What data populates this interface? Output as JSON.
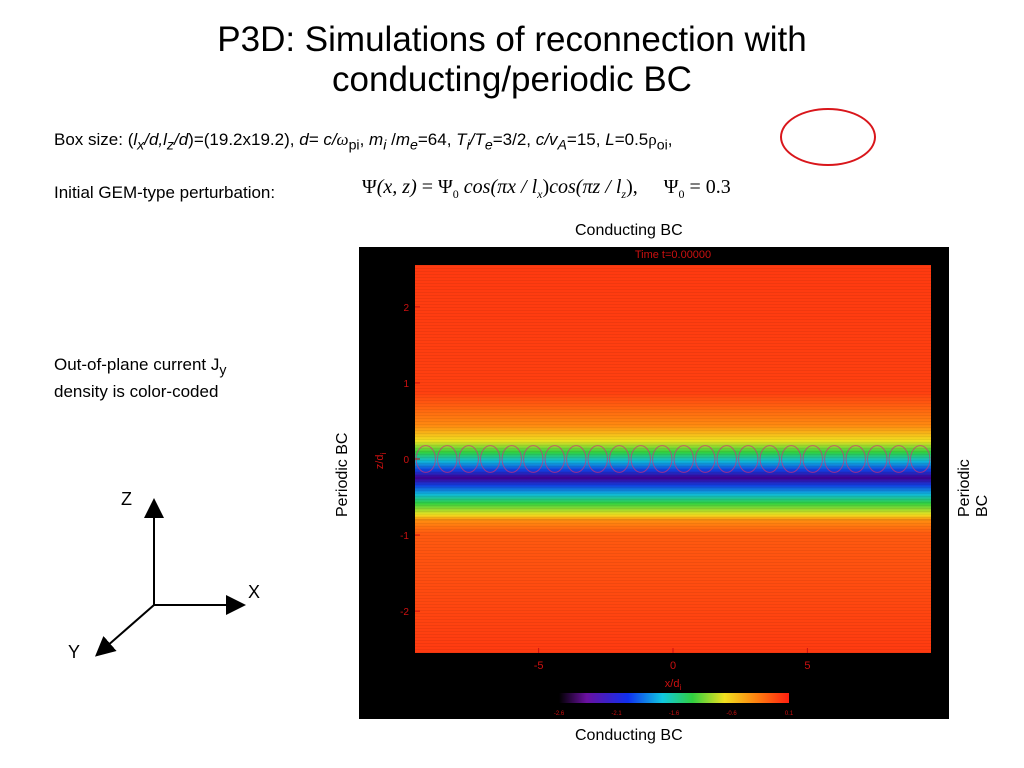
{
  "slide": {
    "title_line1": "P3D: Simulations of reconnection with",
    "title_line2": "conducting/periodic BC",
    "box_size": {
      "prefix": "Box size: (",
      "lx": "l",
      "lx_sub": "x",
      "slash_d1": "/d,",
      "lz": "l",
      "lz_sub": "z",
      "slash_d2": "/d",
      "dims": ")=(19.2x19.2), ",
      "d_eq": "d",
      "d_rhs": "= c/",
      "omega": "ω",
      "omega_sub": "pi",
      "comma1": ",  ",
      "mi": "m",
      "mi_sub": "i",
      "slash": " /",
      "me": "m",
      "me_sub": "e",
      "mass_ratio": "=64, ",
      "ti": "T",
      "ti_sub": "i",
      "slash2": "/",
      "te": "T",
      "te_sub": "e",
      "temp_ratio": "=3/2, ",
      "cva": "c/v",
      "cva_sub": "A",
      "cva_val": "=15, ",
      "L": "L",
      "L_val": "=0.5",
      "rho": "ρ",
      "rho_sub": "oi",
      "tail": ","
    },
    "gem_label": "Initial GEM-type perturbation:",
    "formula": {
      "psi": "Ψ",
      "args": "(x, z)",
      "eq": " = ",
      "psi0": "Ψ",
      "zero": "0",
      "cos1": " cos(πx / l",
      "x_sub": "x",
      "close1": ")",
      "cos2": "cos(πz / l",
      "z_sub": "z",
      "close2": "),",
      "psi0_2": "Ψ",
      "zero2": "0",
      "value": " = 0.3"
    },
    "current_note_line1": "Out-of-plane current J",
    "current_note_sub": "y",
    "current_note_line2": "density is color-coded",
    "bc_top": "Conducting BC",
    "bc_bottom": "Conducting BC",
    "bc_left": "Periodic BC",
    "bc_right": "Periodic BC",
    "axes": {
      "z": "Z",
      "x": "X",
      "y": "Y"
    }
  },
  "colors": {
    "accent_red": "#d9161b",
    "plot_bg": "#000000",
    "plot_text": "#cc1010"
  },
  "chart_data": {
    "type": "heatmap",
    "title": "Time  t=0.00000",
    "xlabel": "x/d",
    "xlabel_sub": "i",
    "ylabel": "z/d",
    "ylabel_sub": "i",
    "x_ticks": [
      "-5",
      "0",
      "5"
    ],
    "x_tick_values": [
      -5,
      0,
      5
    ],
    "y_ticks": [
      "-2",
      "-1",
      "0",
      "1",
      "2"
    ],
    "y_tick_values": [
      -2,
      -1,
      0,
      1,
      2
    ],
    "xlim": [
      -9.6,
      9.6
    ],
    "ylim": [
      -2.55,
      2.55
    ],
    "colorbar_ticks": [
      "-2.6",
      "-2.1",
      "-1.6",
      "-0.6",
      "0.1"
    ],
    "current_sheet_center_z": 0,
    "current_sheet_halfwidth_z": 0.5
  }
}
